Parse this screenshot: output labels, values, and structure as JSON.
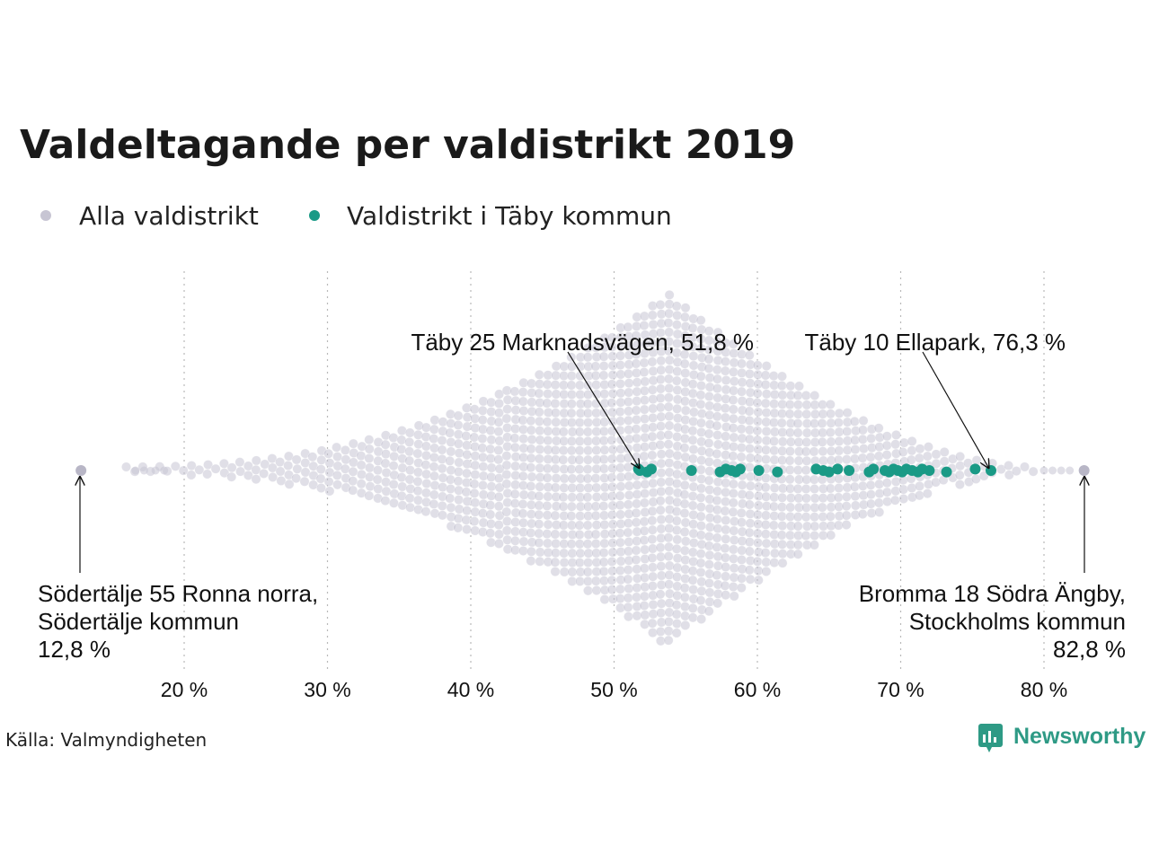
{
  "chart_data": {
    "type": "scatter",
    "subtype": "beeswarm",
    "title": "Valdeltagande per valdistrikt 2019",
    "xlim": [
      12,
      84
    ],
    "x_ticks": [
      20,
      30,
      40,
      50,
      60,
      70,
      80
    ],
    "x_tick_labels": [
      "20 %",
      "30 %",
      "40 %",
      "50 %",
      "60 %",
      "70 %",
      "80 %"
    ],
    "grid": "vertical dotted",
    "legend_position": "top-left",
    "series": [
      {
        "name": "Alla valdistrikt",
        "color": "#c7c5d3",
        "distribution_note_values": {
          "min": 12.8,
          "max": 82.8,
          "peak": 53.8
        }
      },
      {
        "name": "Valdistrikt i Täby kommun",
        "color": "#1a9a86",
        "x": [
          51.7,
          51.8,
          52.3,
          52.6,
          55.4,
          57.4,
          57.8,
          58.2,
          58.5,
          58.8,
          60.1,
          61.4,
          64.1,
          64.6,
          65.0,
          65.6,
          66.4,
          67.8,
          68.1,
          68.9,
          69.2,
          69.5,
          69.8,
          70.1,
          70.4,
          70.8,
          71.2,
          71.5,
          72.0,
          73.2,
          75.2,
          76.3
        ]
      }
    ],
    "annotations": [
      {
        "lines": [
          "Täby 25 Marknadsvägen, 51,8 %"
        ],
        "x": 51.8
      },
      {
        "lines": [
          "Täby 10  Ellapark, 76,3 %"
        ],
        "x": 76.3
      },
      {
        "lines": [
          "Södertälje 55 Ronna norra,",
          "Södertälje kommun",
          "12,8 %"
        ],
        "x": 12.8
      },
      {
        "lines": [
          "Bromma 18 Södra Ängby,",
          "Stockholms kommun",
          "82,8 %"
        ],
        "x": 82.8
      }
    ]
  },
  "source": "Källa: Valmyndigheten",
  "logo": {
    "text": "Newsworthy",
    "color": "#2e9a85"
  }
}
